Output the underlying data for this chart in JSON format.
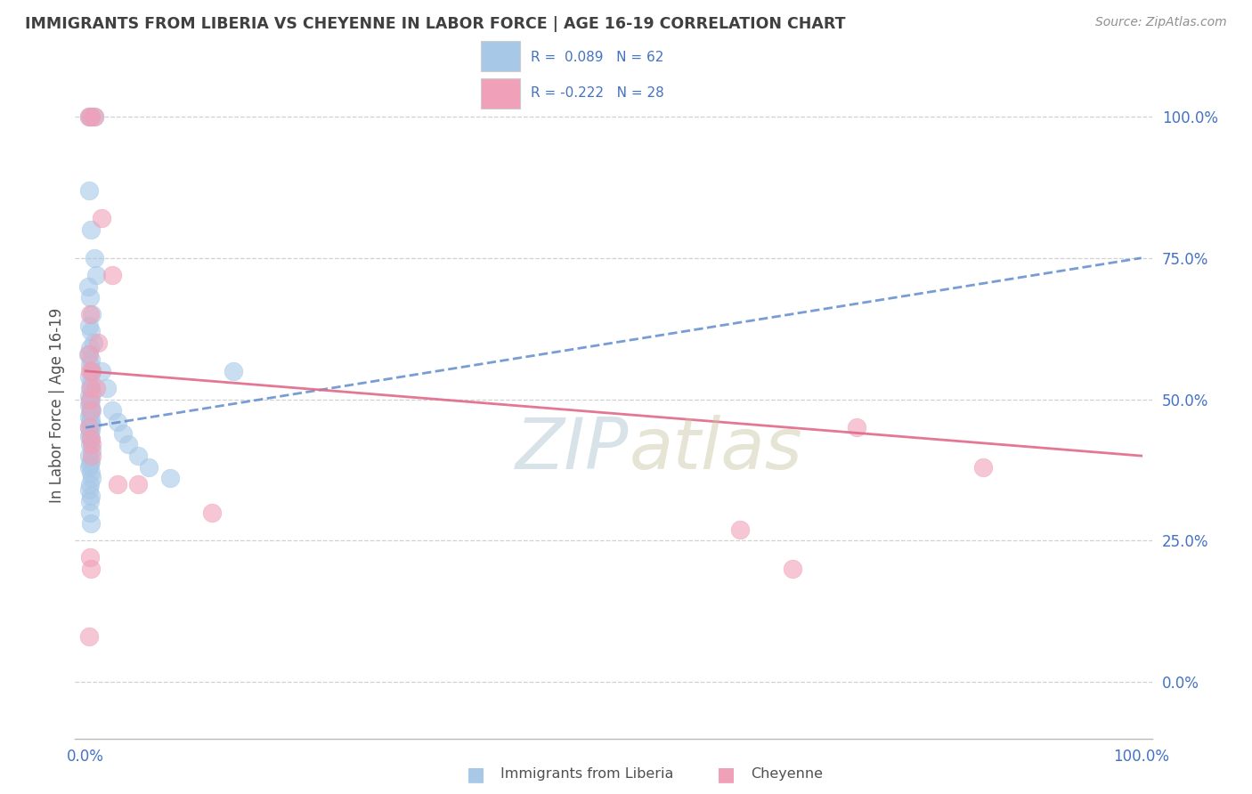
{
  "title": "IMMIGRANTS FROM LIBERIA VS CHEYENNE IN LABOR FORCE | AGE 16-19 CORRELATION CHART",
  "source": "Source: ZipAtlas.com",
  "ylabel": "In Labor Force | Age 16-19",
  "legend_label1": "Immigrants from Liberia",
  "legend_label2": "Cheyenne",
  "legend_text1": "R =  0.089   N = 62",
  "legend_text2": "R = -0.222   N = 28",
  "color_blue_scatter": "#a8c8e8",
  "color_pink_scatter": "#f0a0b8",
  "color_blue_line": "#5585c8",
  "color_pink_line": "#e06888",
  "color_legend_text": "#4472c4",
  "color_title": "#404040",
  "color_source": "#909090",
  "color_grid": "#cccccc",
  "color_watermark_zip": "#c8dce8",
  "color_watermark_atlas": "#c8c8a0",
  "yticks": [
    0,
    25,
    50,
    75,
    100
  ],
  "ytick_labels": [
    "0.0%",
    "25.0%",
    "50.0%",
    "75.0%",
    "100.0%"
  ],
  "blue_x": [
    0.3,
    0.5,
    0.8,
    0.3,
    0.5,
    0.8,
    1.0,
    0.2,
    0.4,
    0.6,
    0.3,
    0.5,
    0.7,
    0.4,
    0.2,
    0.5,
    0.4,
    0.6,
    0.3,
    0.5,
    0.4,
    0.6,
    0.3,
    0.5,
    0.4,
    0.3,
    0.5,
    0.6,
    0.4,
    0.3,
    0.5,
    0.4,
    0.6,
    0.3,
    0.5,
    0.4,
    0.3,
    0.5,
    0.4,
    0.6,
    0.3,
    0.5,
    0.4,
    0.3,
    0.5,
    0.6,
    0.4,
    0.3,
    0.5,
    0.4,
    1.5,
    2.0,
    2.5,
    3.0,
    3.5,
    4.0,
    5.0,
    6.0,
    8.0,
    14.0,
    0.4,
    0.5
  ],
  "blue_y": [
    100.0,
    100.0,
    100.0,
    87.0,
    80.0,
    75.0,
    72.0,
    70.0,
    68.0,
    65.0,
    63.0,
    62.0,
    60.0,
    59.0,
    58.0,
    57.0,
    56.0,
    55.0,
    54.0,
    53.0,
    52.0,
    51.0,
    50.5,
    50.0,
    49.5,
    49.0,
    48.5,
    48.0,
    47.5,
    47.0,
    46.5,
    46.0,
    45.5,
    45.0,
    44.5,
    44.0,
    43.5,
    43.0,
    42.0,
    41.0,
    40.0,
    39.0,
    38.5,
    38.0,
    37.0,
    36.0,
    35.0,
    34.0,
    33.0,
    32.0,
    55.0,
    52.0,
    48.0,
    46.0,
    44.0,
    42.0,
    40.0,
    38.0,
    36.0,
    55.0,
    30.0,
    28.0
  ],
  "pink_x": [
    0.3,
    0.5,
    0.8,
    1.5,
    2.5,
    0.4,
    1.2,
    0.3,
    0.5,
    0.6,
    0.4,
    0.3,
    0.5,
    0.6,
    1.0,
    0.4,
    0.5,
    3.0,
    62.0,
    67.0,
    73.0,
    85.0,
    0.3,
    0.5,
    0.4,
    0.6,
    5.0,
    12.0
  ],
  "pink_y": [
    100.0,
    100.0,
    100.0,
    82.0,
    72.0,
    65.0,
    60.0,
    58.0,
    52.0,
    55.0,
    50.0,
    45.0,
    43.0,
    40.0,
    52.0,
    22.0,
    20.0,
    35.0,
    27.0,
    20.0,
    45.0,
    38.0,
    8.0,
    48.0,
    55.0,
    42.0,
    35.0,
    30.0
  ],
  "xlim": [
    -1,
    101
  ],
  "ylim": [
    -10,
    108
  ],
  "figsize": [
    14.06,
    8.92
  ],
  "dpi": 100
}
